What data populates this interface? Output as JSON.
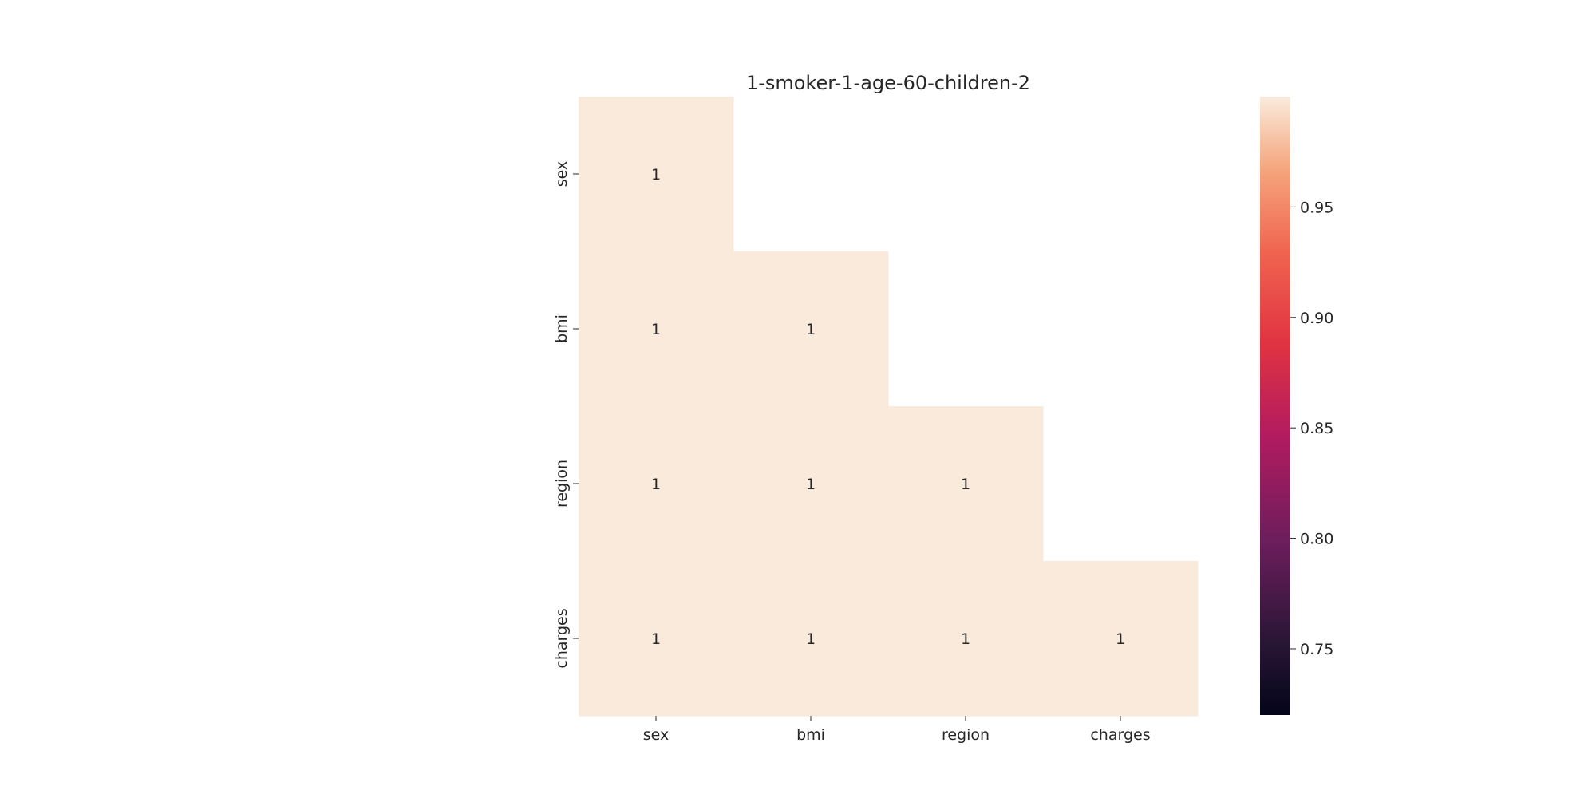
{
  "chart_data": {
    "type": "heatmap",
    "title": "1-smoker-1-age-60-children-2",
    "row_labels": [
      "sex",
      "bmi",
      "region",
      "charges"
    ],
    "col_labels": [
      "sex",
      "bmi",
      "region",
      "charges"
    ],
    "values": [
      [
        1,
        null,
        null,
        null
      ],
      [
        1,
        1,
        null,
        null
      ],
      [
        1,
        1,
        1,
        null
      ],
      [
        1,
        1,
        1,
        1
      ]
    ],
    "mask": "upper-triangle",
    "annotations": true,
    "colormap": "rocket",
    "colorbar": {
      "min": 0.72,
      "max": 1.0,
      "ticks": [
        0.75,
        0.8,
        0.85,
        0.9,
        0.95
      ],
      "tick_labels": [
        "0.75",
        "0.80",
        "0.85",
        "0.90",
        "0.95"
      ],
      "placement": "right"
    },
    "cell_color": "#faeadc"
  }
}
